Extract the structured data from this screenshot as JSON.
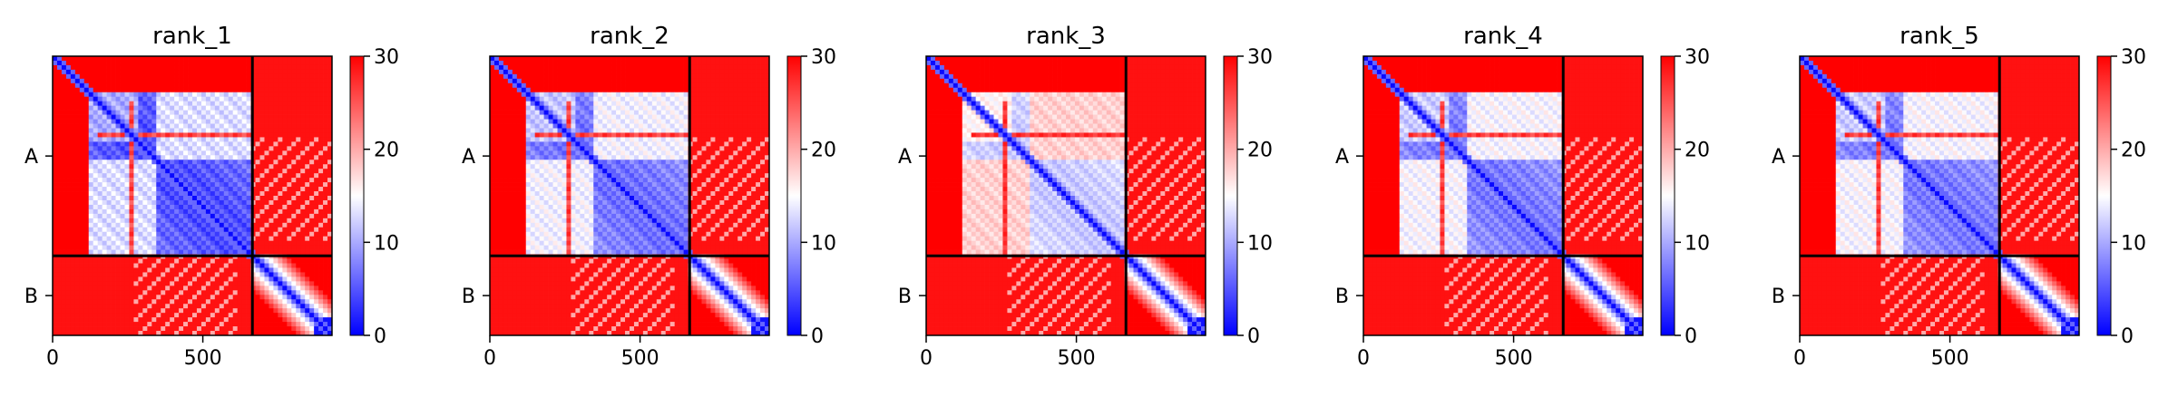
{
  "chart_data": {
    "type": "heatmap",
    "panels": [
      {
        "title": "rank_1",
        "blue_strength": 1.0
      },
      {
        "title": "rank_2",
        "blue_strength": 0.92
      },
      {
        "title": "rank_3",
        "blue_strength": 0.72
      },
      {
        "title": "rank_4",
        "blue_strength": 0.9
      },
      {
        "title": "rank_5",
        "blue_strength": 0.9
      }
    ],
    "chain_labels": [
      "A",
      "B"
    ],
    "chain_boundary": 665,
    "axis_extent": [
      0,
      930
    ],
    "x_ticks": [
      0,
      500
    ],
    "colorbar": {
      "min": 0,
      "max": 30,
      "ticks": [
        0,
        10,
        20,
        30
      ],
      "colors": [
        "#0000ff",
        "#ffffff",
        "#ff0000"
      ]
    }
  }
}
